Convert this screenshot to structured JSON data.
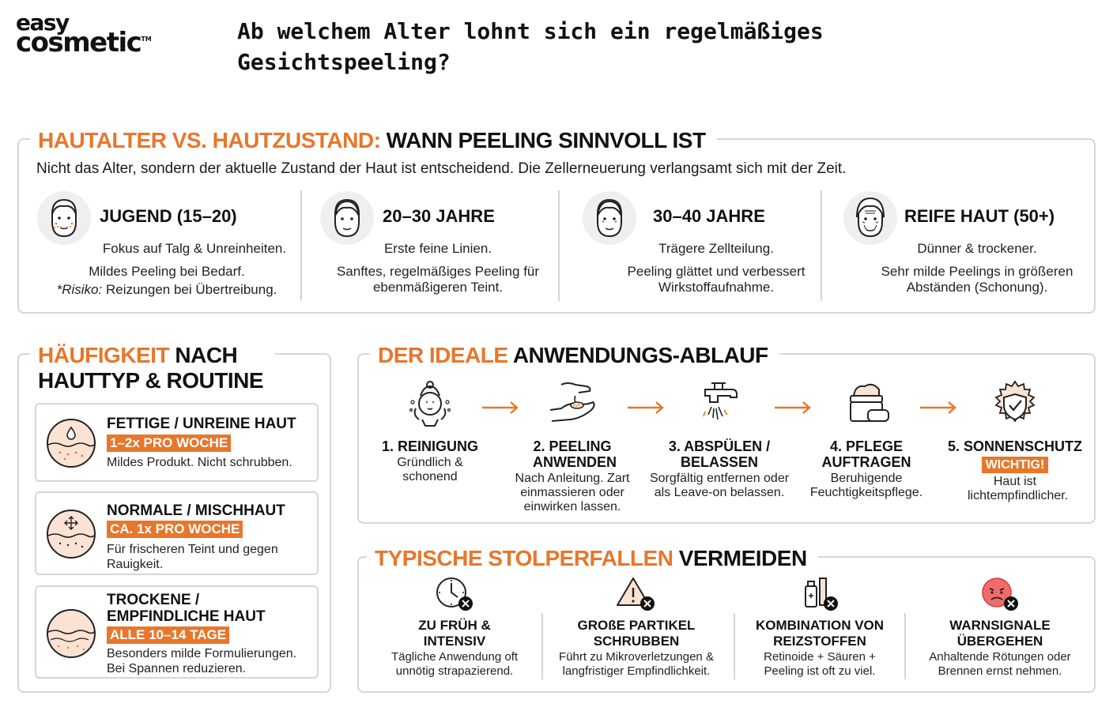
{
  "logo": {
    "line1": "easy",
    "line2": "cosmetic",
    "tm": "TM"
  },
  "page_title": "Ab welchem Alter lohnt sich ein regelmäßiges Gesichtspeeling?",
  "colors": {
    "accent": "#e8762b",
    "border": "#d6d6d6",
    "text": "#1a1a1a"
  },
  "age_section": {
    "title_accent": "HAUTALTER VS. HAUTZUSTAND:",
    "title_rest": " WANN PEELING SINNVOLL IST",
    "subtitle": "Nicht das Alter, sondern der aktuelle Zustand der Haut ist entscheidend. Die Zellerneuerung verlangsamt sich mit der Zeit.",
    "columns": [
      {
        "icon": "young-face-icon",
        "heading": "JUGEND (15–20)",
        "line1": "Fokus auf Talg & Unreinheiten.",
        "line2": "Mildes Peeling bei Bedarf.",
        "risk_label": "*Risiko:",
        "risk_text": " Reizungen bei Übertreibung."
      },
      {
        "icon": "face-icon",
        "heading": "20–30 JAHRE",
        "line1": "Erste feine Linien.",
        "line2": "Sanftes, regelmäßiges Peeling für ebenmäßigeren Teint."
      },
      {
        "icon": "face-icon",
        "heading": "30–40 JAHRE",
        "line1": "Trägere Zellteilung.",
        "line2": "Peeling glättet und verbessert Wirkstoffaufnahme."
      },
      {
        "icon": "mature-face-icon",
        "heading": "REIFE HAUT (50+)",
        "line1": "Dünner & trockener.",
        "line2": "Sehr milde Peelings in größeren Abständen (Schonung)."
      }
    ]
  },
  "frequency_section": {
    "title_accent": "HÄUFIGKEIT",
    "title_rest": " NACH HAUTTYP & ROUTINE",
    "cards": [
      {
        "icon": "oily-skin-icon",
        "title": "FETTIGE / UNREINE HAUT",
        "badge": "1–2x PRO WOCHE",
        "desc": "Mildes Produkt. Nicht schrubben."
      },
      {
        "icon": "combination-skin-icon",
        "title": "NORMALE / MISCHHAUT",
        "badge": "CA. 1x PRO WOCHE",
        "desc": "Für frischeren Teint und gegen Rauigkeit."
      },
      {
        "icon": "dry-skin-icon",
        "title": "TROCKENE / EMPFINDLICHE HAUT",
        "badge": "ALLE 10–14 TAGE",
        "desc": "Besonders milde Formulierungen. Bei Spannen reduzieren."
      }
    ]
  },
  "routine_section": {
    "title_accent": "DER IDEALE",
    "title_rest": " ANWENDUNGS-ABLAUF",
    "steps": [
      {
        "icon": "face-washing-icon",
        "title": "1. REINIGUNG",
        "desc": "Gründlich & schonend"
      },
      {
        "icon": "peeling-hand-icon",
        "title": "2. PEELING ANWENDEN",
        "desc": "Nach Anleitung. Zart einmassieren oder einwirken lassen."
      },
      {
        "icon": "faucet-icon",
        "title": "3. ABSPÜLEN / BELASSEN",
        "desc": "Sorgfältig entfernen oder als Leave-on belassen."
      },
      {
        "icon": "cream-jar-icon",
        "title": "4. PFLEGE AUFTRAGEN",
        "desc": "Beruhigende Feuchtigkeitspflege."
      },
      {
        "icon": "sun-shield-icon",
        "title": "5. SONNENSCHUTZ",
        "badge": "WICHTIG!",
        "desc": "Haut ist lichtempfindlicher."
      }
    ]
  },
  "pitfalls_section": {
    "title_accent": "TYPISCHE STOLPERFALLEN",
    "title_rest": " VERMEIDEN",
    "items": [
      {
        "icon": "clock-x-icon",
        "title": "ZU FRÜH & INTENSIV",
        "desc": "Tägliche Anwendung oft unnötig strapazierend."
      },
      {
        "icon": "warning-x-icon",
        "title": "GROßE PARTIKEL SCHRUBBEN",
        "desc": "Führt zu Mikroverletzungen & langfristiger Empfindlichkeit."
      },
      {
        "icon": "products-x-icon",
        "title": "KOMBINATION VON REIZSTOFFEN",
        "desc": "Retinoide + Säuren + Peeling ist oft zu viel."
      },
      {
        "icon": "red-face-x-icon",
        "title": "WARNSIGNALE ÜBERGEHEN",
        "desc": "Anhaltende Rötungen oder Brennen ernst nehmen."
      }
    ]
  }
}
